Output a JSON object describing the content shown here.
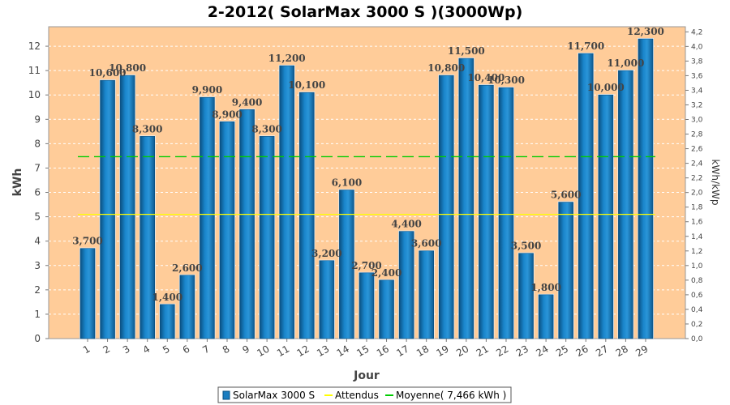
{
  "chart_data": {
    "type": "bar",
    "title": "2-2012( SolarMax 3000 S )(3000Wp)",
    "xlabel": "Jour",
    "ylabel": "kWh",
    "ylabel_right": "kWh/kWp",
    "categories": [
      "1",
      "2",
      "3",
      "4",
      "5",
      "6",
      "7",
      "8",
      "9",
      "10",
      "11",
      "12",
      "13",
      "14",
      "15",
      "16",
      "17",
      "18",
      "19",
      "20",
      "21",
      "22",
      "23",
      "24",
      "25",
      "26",
      "27",
      "28",
      "29"
    ],
    "series": [
      {
        "name": "SolarMax 3000 S",
        "values": [
          3.7,
          10.6,
          10.8,
          8.3,
          1.4,
          2.6,
          9.9,
          8.9,
          9.4,
          8.3,
          11.2,
          10.1,
          3.2,
          6.1,
          2.7,
          2.4,
          4.4,
          3.6,
          10.8,
          11.5,
          10.4,
          10.3,
          3.5,
          1.8,
          5.6,
          11.7,
          10.0,
          11.0,
          12.3
        ],
        "labels": [
          "3,700",
          "10,600",
          "10,800",
          "8,300",
          "1,400",
          "2,600",
          "9,900",
          "8,900",
          "9,400",
          "8,300",
          "11,200",
          "10,100",
          "3,200",
          "6,100",
          "2,700",
          "2,400",
          "4,400",
          "3,600",
          "10,800",
          "11,500",
          "10,400",
          "10,300",
          "3,500",
          "1,800",
          "5,600",
          "11,700",
          "10,000",
          "11,000",
          "12,300"
        ]
      }
    ],
    "ylim": [
      0,
      12.8
    ],
    "yticks": [
      "0",
      "1",
      "2",
      "3",
      "4",
      "5",
      "6",
      "7",
      "8",
      "9",
      "10",
      "11",
      "12"
    ],
    "ylim_right": [
      0,
      4.27
    ],
    "yticks_right": [
      "0,0",
      "0,2",
      "0,4",
      "0,6",
      "0,8",
      "1,0",
      "1,2",
      "1,4",
      "1,6",
      "1,8",
      "2,0",
      "2,2",
      "2,4",
      "2,6",
      "2,8",
      "3,0",
      "3,2",
      "3,4",
      "3,6",
      "3,8",
      "4,0",
      "4,2"
    ],
    "attendus": 5.1,
    "moyenne": 7.466,
    "legend": {
      "position": "bottom",
      "items": [
        "SolarMax 3000 S",
        "Attendus",
        "Moyenne( 7,466 kWh )"
      ]
    },
    "grid": true,
    "colors": {
      "plot_bg": "#ffcc99",
      "bar": "#1a7dc0",
      "bar_dark": "#0a4f80",
      "bar_light": "#55b2e8",
      "attendus": "#ffff00",
      "moyenne": "#00cc00",
      "grid": "#ffffff"
    }
  }
}
